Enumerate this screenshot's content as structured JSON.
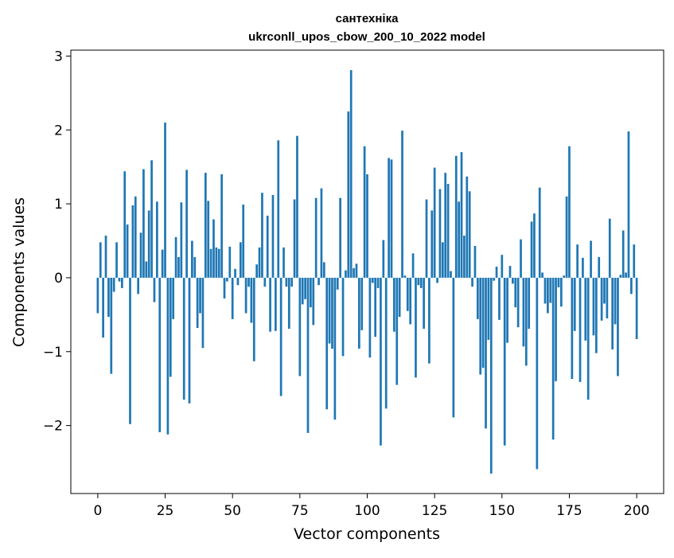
{
  "chart_data": {
    "type": "bar",
    "title": "сантехніка",
    "subtitle": "ukrconll_upos_cbow_200_10_2022 model",
    "xlabel": "Vector components",
    "ylabel": "Components values",
    "xlim": [
      -10,
      210
    ],
    "ylim": [
      -2.92,
      3.08
    ],
    "x_ticks": [
      0,
      25,
      50,
      75,
      100,
      125,
      150,
      175,
      200
    ],
    "x_tick_labels": [
      "0",
      "25",
      "50",
      "75",
      "100",
      "125",
      "150",
      "175",
      "200"
    ],
    "y_ticks": [
      -2,
      -1,
      0,
      1,
      2,
      3
    ],
    "y_tick_labels": [
      "−2",
      "−1",
      "0",
      "1",
      "2",
      "3"
    ],
    "bar_color": "#1f77b4",
    "grid": false,
    "values": [
      -0.48,
      0.48,
      -0.81,
      0.57,
      -0.53,
      -1.3,
      -0.19,
      0.48,
      -0.05,
      -0.14,
      1.44,
      0.72,
      -1.98,
      0.98,
      1.1,
      -0.22,
      0.61,
      1.47,
      0.22,
      0.91,
      1.59,
      -0.33,
      1.03,
      -2.09,
      0.38,
      2.1,
      -2.12,
      -1.34,
      -0.56,
      0.55,
      0.28,
      1.02,
      -1.65,
      1.46,
      -1.7,
      0.5,
      0.28,
      -0.68,
      -0.48,
      -0.95,
      1.42,
      1.04,
      0.39,
      0.79,
      0.41,
      0.39,
      1.4,
      -0.28,
      -0.05,
      0.42,
      -0.56,
      0.12,
      -0.1,
      0.48,
      0.99,
      -0.48,
      -0.12,
      -0.61,
      -1.13,
      0.18,
      0.41,
      1.15,
      -0.12,
      0.84,
      -0.73,
      1.12,
      -0.72,
      1.86,
      -1.6,
      0.41,
      -0.12,
      -0.69,
      -0.12,
      1.06,
      1.92,
      -1.33,
      -0.36,
      -0.29,
      -2.1,
      -0.4,
      -0.64,
      1.08,
      -0.1,
      1.21,
      0.21,
      -1.78,
      -0.89,
      -0.96,
      -1.92,
      -0.16,
      1.08,
      -1.06,
      0.1,
      2.25,
      2.81,
      0.13,
      0.19,
      -0.96,
      -0.71,
      1.78,
      1.4,
      -1.08,
      -0.07,
      -0.8,
      -0.14,
      -2.27,
      0.51,
      -1.77,
      1.62,
      1.6,
      -0.73,
      -1.45,
      -0.53,
      1.99,
      0.03,
      -0.45,
      -0.63,
      0.33,
      -1.35,
      -0.1,
      -0.14,
      -0.69,
      1.06,
      -1.16,
      0.91,
      1.49,
      -0.07,
      1.2,
      0.48,
      1.42,
      1.27,
      0.09,
      -1.89,
      1.65,
      1.03,
      1.7,
      0.57,
      1.37,
      1.17,
      -0.12,
      0.43,
      -0.56,
      -1.31,
      -1.22,
      -2.04,
      -0.84,
      -2.65,
      -0.04,
      0.15,
      -0.57,
      0.31,
      -2.27,
      -0.88,
      0.16,
      -0.08,
      -0.4,
      -0.67,
      0.52,
      -0.93,
      -1.19,
      -0.69,
      0.76,
      0.87,
      -2.59,
      1.22,
      0.07,
      -0.35,
      -0.48,
      -0.34,
      -2.19,
      -1.4,
      -0.13,
      -0.39,
      0.03,
      1.1,
      1.78,
      -1.37,
      -0.72,
      0.45,
      -1.41,
      0.27,
      -0.85,
      -1.65,
      0.5,
      -0.78,
      -1.02,
      0.28,
      -0.58,
      -0.35,
      -0.55,
      0.8,
      -0.97,
      -0.63,
      -1.33,
      0.04,
      0.64,
      0.07,
      1.98,
      -0.22,
      0.45,
      -0.83
    ]
  }
}
